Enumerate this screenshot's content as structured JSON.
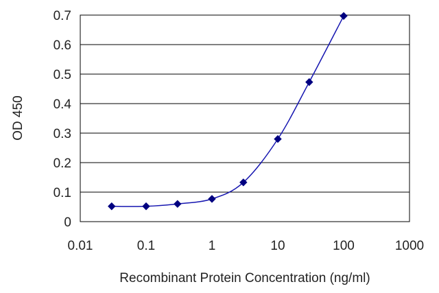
{
  "chart_data": {
    "type": "line",
    "title": "",
    "xlabel": "Recombinant Protein Concentration (ng/ml)",
    "ylabel": "OD 450",
    "x_scale": "log",
    "xlim": [
      0.01,
      1000
    ],
    "ylim": [
      0,
      0.7
    ],
    "x_ticks": [
      0.01,
      0.1,
      1,
      10,
      100,
      1000
    ],
    "x_tick_labels": [
      "0.01",
      "0.1",
      "1",
      "10",
      "100",
      "1000"
    ],
    "y_ticks": [
      0,
      0.1,
      0.2,
      0.3,
      0.4,
      0.5,
      0.6,
      0.7
    ],
    "y_tick_labels": [
      "0",
      "0.1",
      "0.2",
      "0.3",
      "0.4",
      "0.5",
      "0.6",
      "0.7"
    ],
    "grid": "horizontal",
    "legend": "none",
    "series": [
      {
        "x": [
          0.03,
          0.1,
          0.3,
          1,
          3,
          10,
          30,
          100
        ],
        "y": [
          0.052,
          0.052,
          0.06,
          0.077,
          0.133,
          0.28,
          0.473,
          0.697
        ],
        "color": "#000080",
        "marker": "diamond"
      }
    ]
  }
}
